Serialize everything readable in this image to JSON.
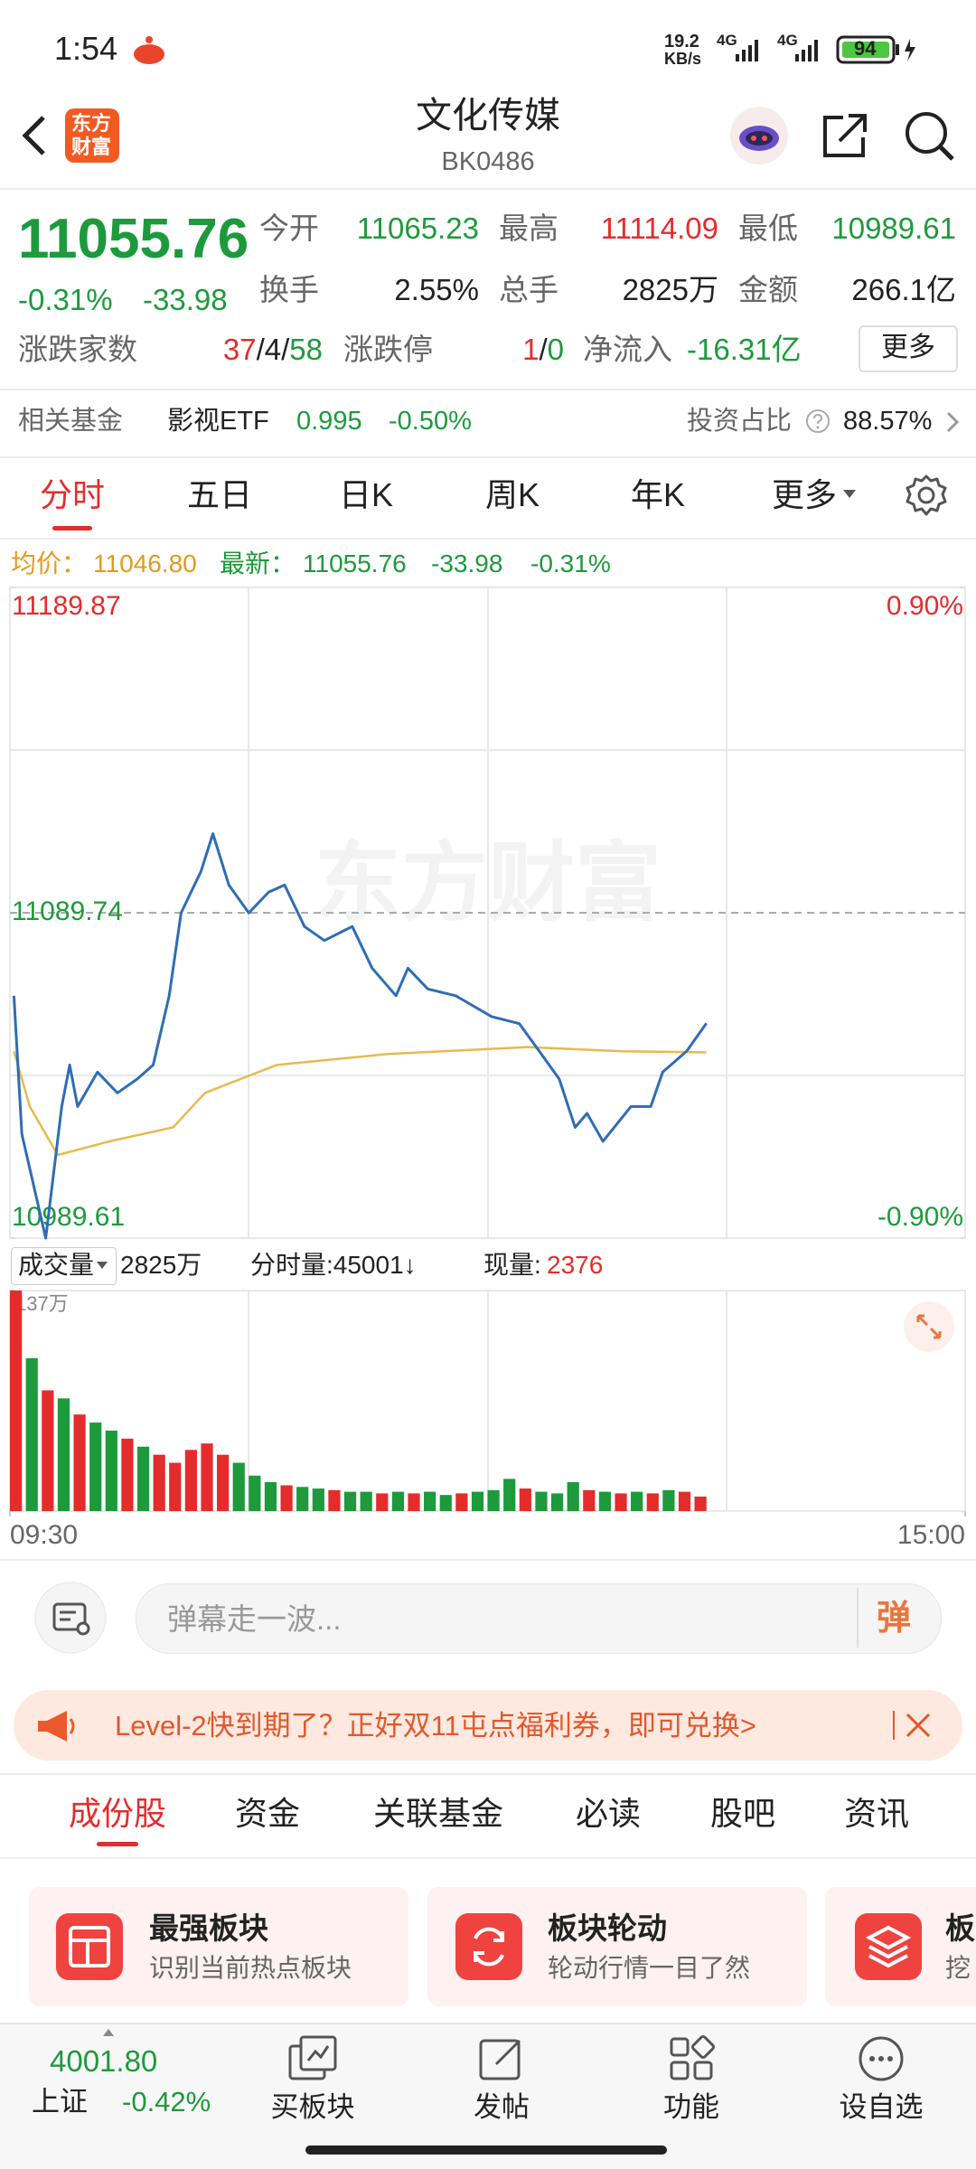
{
  "status_bar": {
    "time": "1:54",
    "speed": "19.2",
    "speed_unit": "KB/s",
    "network_1": "4G",
    "network_2": "4G",
    "battery": "94"
  },
  "header": {
    "logo": [
      "东方",
      "财富"
    ],
    "title": "文化传媒",
    "code": "BK0486"
  },
  "quote": {
    "price": "11055.76",
    "change_percent": "-0.31%",
    "change": "-33.98",
    "stats": [
      [
        {
          "label": "今开",
          "value": "11065.23"
        },
        {
          "label": "最高",
          "value": "11114.09"
        },
        {
          "label": "最低",
          "value": "10989.61"
        }
      ],
      [
        {
          "label": "换手",
          "value": "2.55%"
        },
        {
          "label": "总手",
          "value": "2825万"
        },
        {
          "label": "金额",
          "value": "266.1亿"
        }
      ]
    ],
    "breadth": {
      "label": "涨跌家数",
      "parts": [
        "37",
        "/4/",
        "58"
      ]
    },
    "limits": {
      "label": "涨跌停",
      "parts": [
        "1",
        "/",
        "0"
      ]
    },
    "net_inflow": {
      "label": "净流入",
      "value": "-16.31亿"
    },
    "more": "更多"
  },
  "fund": {
    "label": "相关基金",
    "name": "影视ETF",
    "price": "0.995",
    "change": "-0.50%",
    "ratio_label": "投资占比",
    "ratio": "88.57%"
  },
  "tabs": [
    "分时",
    "五日",
    "日K",
    "周K",
    "年K",
    "更多"
  ],
  "summary": {
    "avg_label": "均价：",
    "avg": "11046.80",
    "last_label": "最新：",
    "last": "11055.76",
    "change": "-33.98",
    "change_percent": "-0.31%"
  },
  "price_chart": {
    "type": "line",
    "watermark": "东方财富",
    "xlim": [
      0,
      240
    ],
    "ylim": [
      10989.61,
      11189.87
    ],
    "yticks": [
      11189.87,
      11089.74,
      10989.61
    ],
    "y2lim": [
      -0.9,
      0.9
    ],
    "y2ticks": [
      {
        "value": 0.9,
        "label": "0.90%"
      },
      {
        "value": -0.9,
        "label": "-0.90%"
      }
    ],
    "series": [
      {
        "color": "#2f6db5",
        "x": [
          1,
          3,
          7,
          9,
          13,
          15,
          17,
          22,
          27,
          32,
          36,
          40,
          43,
          48,
          51,
          55,
          60,
          65,
          69,
          74,
          79,
          86,
          91,
          97,
          100,
          105,
          112,
          121,
          128,
          133,
          138,
          142,
          145,
          149,
          156,
          161,
          164,
          170,
          175
        ],
        "values": [
          11064.2,
          11021.6,
          11000.3,
          10989.61,
          11030.1,
          11042.9,
          11030.1,
          11040.7,
          11034.3,
          11038.6,
          11042.9,
          11064.2,
          11089.7,
          11102.5,
          11114.09,
          11098.3,
          11089.7,
          11096.1,
          11098.3,
          11085.5,
          11081.2,
          11085.5,
          11072.7,
          11064.2,
          11072.7,
          11066.3,
          11064.2,
          11057.8,
          11055.6,
          11047.1,
          11038.6,
          11023.7,
          11028,
          11019.4,
          11030.1,
          11030.1,
          11040.7,
          11047.1,
          11055.76
        ]
      },
      {
        "color": "#e9b94e",
        "x": [
          1,
          5,
          12,
          25,
          41,
          49,
          67,
          95,
          130,
          154,
          175
        ],
        "values": [
          11047.1,
          11030.1,
          11015.2,
          11019.4,
          11023.7,
          11034.3,
          11042.9,
          11046.3,
          11048.4,
          11047.1,
          11046.8
        ]
      }
    ]
  },
  "volume_header": {
    "label": "成交量",
    "total": "2825万",
    "minute_volume": "分时量:45001↓",
    "current_label": "现量:",
    "current": "2376"
  },
  "volume_chart": {
    "type": "bar",
    "xlim": [
      0,
      240
    ],
    "xticks": [
      {
        "value": 0,
        "label": "09:30"
      },
      {
        "value": 240,
        "label": "15:00"
      }
    ],
    "ylim": [
      0,
      137
    ],
    "yticks": [
      {
        "value": 137,
        "label": "137万"
      }
    ],
    "x": [
      0,
      4,
      8,
      12,
      16,
      20,
      24,
      28,
      32,
      36,
      40,
      44,
      48,
      52,
      56,
      60,
      64,
      68,
      72,
      76,
      80,
      84,
      88,
      92,
      96,
      100,
      104,
      108,
      112,
      116,
      120,
      124,
      128,
      132,
      136,
      140,
      144,
      148,
      152,
      156,
      160,
      164,
      168,
      172
    ],
    "series": [
      {
        "color": "#e42c2c",
        "values": [
          137,
          null,
          75,
          null,
          60,
          null,
          null,
          45,
          null,
          35,
          30,
          38,
          42,
          35,
          null,
          null,
          null,
          16,
          null,
          null,
          13,
          null,
          null,
          11,
          null,
          11,
          null,
          null,
          11,
          null,
          null,
          null,
          14,
          null,
          null,
          null,
          13,
          null,
          11,
          null,
          11,
          null,
          12,
          9
        ]
      },
      {
        "color": "#1d9a3c",
        "values": [
          null,
          95,
          null,
          70,
          null,
          55,
          50,
          null,
          40,
          null,
          null,
          null,
          null,
          null,
          30,
          22,
          18,
          null,
          15,
          14,
          null,
          12,
          12,
          null,
          12,
          null,
          12,
          10,
          null,
          12,
          13,
          20,
          null,
          12,
          11,
          18,
          null,
          12,
          null,
          12,
          null,
          13,
          null,
          null
        ]
      }
    ]
  },
  "danmu": {
    "placeholder": "弹幕走一波...",
    "button": "弹"
  },
  "banner": "Level-2快到期了？正好双11屯点福利券，即可兑换>",
  "section_tabs": [
    "成份股",
    "资金",
    "关联基金",
    "必读",
    "股吧",
    "资讯"
  ],
  "cards": [
    {
      "title": "最强板块",
      "subtitle": "识别当前热点板块"
    },
    {
      "title": "板块轮动",
      "subtitle": "轮动行情一目了然"
    },
    {
      "title": "板",
      "subtitle": "挖"
    }
  ],
  "bottom_bar": {
    "index": {
      "value": "4001.80",
      "name": "上证",
      "change": "-0.42%"
    },
    "items": [
      "买板块",
      "发帖",
      "功能",
      "设自选"
    ]
  }
}
